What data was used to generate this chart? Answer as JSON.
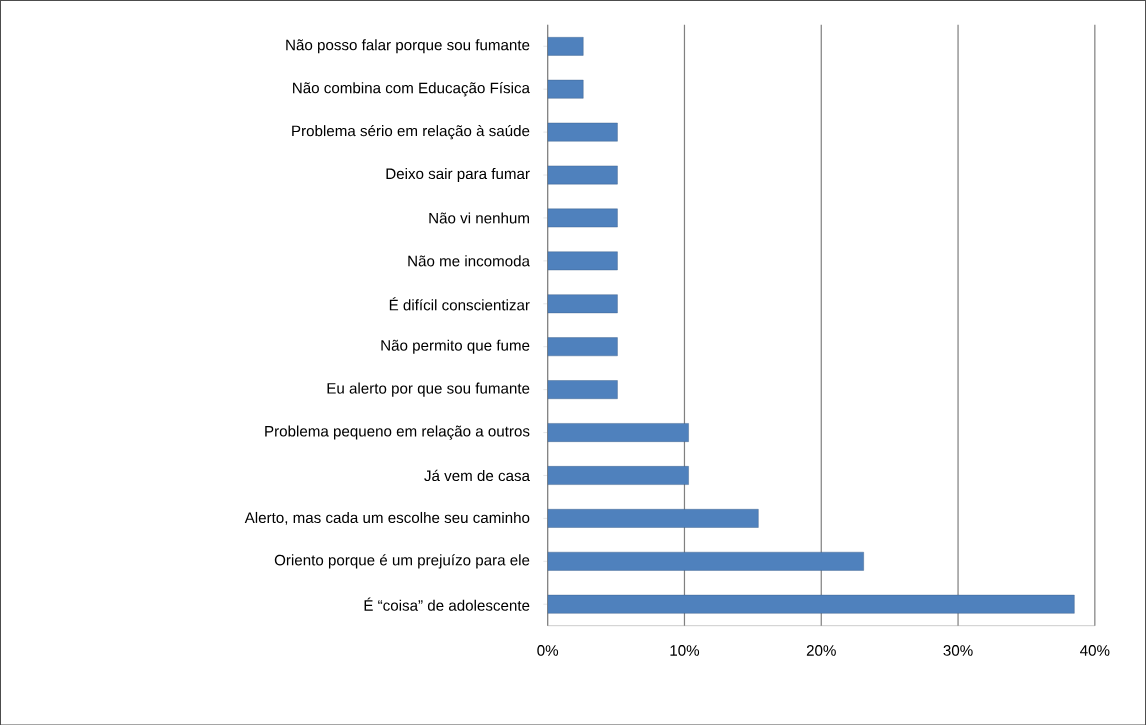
{
  "chart_data": {
    "type": "bar",
    "orientation": "horizontal",
    "categories": [
      "Não posso falar porque sou fumante",
      "Não combina com Educação Física",
      "Problema sério em relação à saúde",
      "Deixo sair para fumar",
      "Não vi nenhum",
      "Não me incomoda",
      "É difícil conscientizar",
      "Não permito que fume",
      "Eu alerto por que sou fumante",
      "Problema pequeno em relação a outros",
      "Já vem de casa",
      "Alerto, mas cada um escolhe seu caminho",
      "Oriento porque é um prejuízo para ele",
      "É “coisa” de adolescente"
    ],
    "values": [
      2.6,
      2.6,
      5.1,
      5.1,
      5.1,
      5.1,
      5.1,
      5.1,
      5.1,
      10.3,
      10.3,
      15.4,
      23.1,
      38.5
    ],
    "color": "#4f81bd",
    "xlim": [
      0,
      40
    ],
    "xticks": [
      {
        "value": 0,
        "label": "0%"
      },
      {
        "value": 10,
        "label": "10%"
      },
      {
        "value": 20,
        "label": "20%"
      },
      {
        "value": 30,
        "label": "30%"
      },
      {
        "value": 40,
        "label": "40%"
      }
    ],
    "grid": "x"
  }
}
